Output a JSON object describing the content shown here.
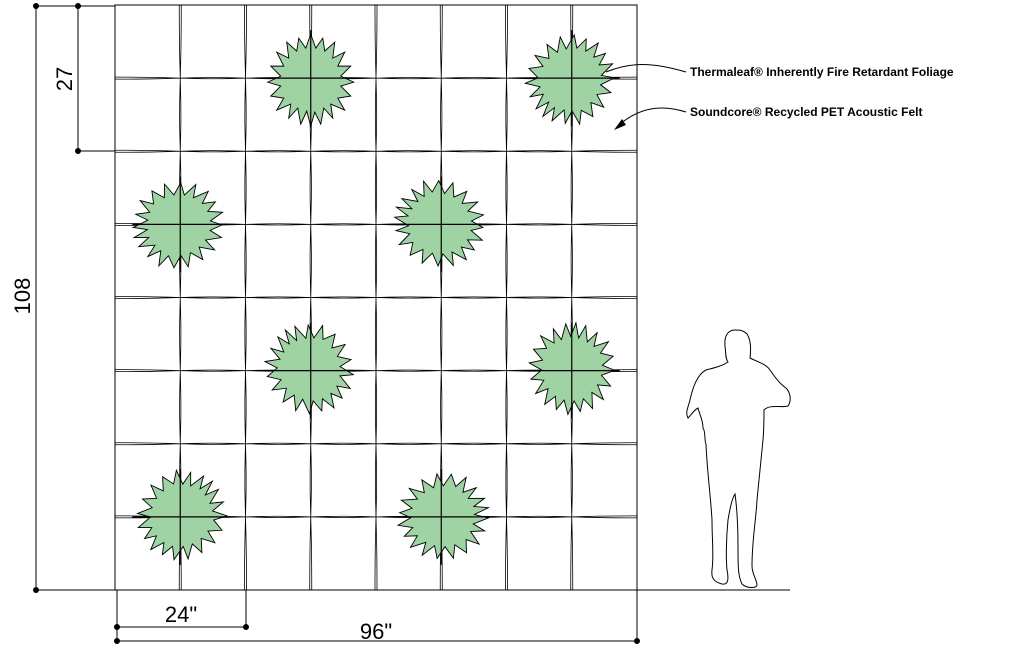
{
  "dimensions": {
    "overall_height": "108",
    "module_height": "27",
    "module_width": "24\"",
    "overall_width": "96\""
  },
  "callouts": {
    "foliage": "Thermaleaf® Inherently Fire Retardant Foliage",
    "felt": "Soundcore® Recycled PET Acoustic Felt"
  },
  "colors": {
    "foliage_fill": "#9fd3a3",
    "line": "#000000",
    "background": "#ffffff"
  },
  "wall": {
    "columns": 4,
    "rows": 4,
    "foliage_positions": [
      {
        "col": 2,
        "row": 1
      },
      {
        "col": 4,
        "row": 1
      },
      {
        "col": 1,
        "row": 2
      },
      {
        "col": 3,
        "row": 2
      },
      {
        "col": 2,
        "row": 3
      },
      {
        "col": 4,
        "row": 3
      },
      {
        "col": 1,
        "row": 4
      },
      {
        "col": 3,
        "row": 4
      }
    ]
  },
  "icons": {
    "foliage": "foliage-cluster-icon",
    "person": "person-silhouette-icon"
  }
}
